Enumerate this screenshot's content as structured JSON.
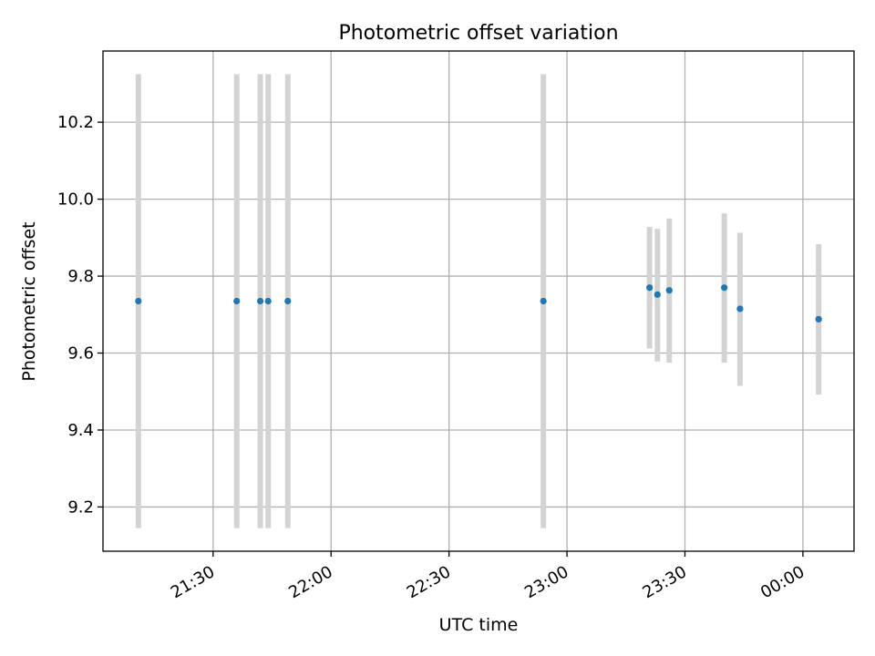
{
  "chart_data": {
    "type": "scatter",
    "title": "Photometric offset variation",
    "xlabel": "UTC time",
    "ylabel": "Photometric offset",
    "x_ticks": [
      "21:30",
      "22:00",
      "22:30",
      "23:00",
      "23:30",
      "00:00"
    ],
    "y_ticks": [
      "9.2",
      "9.4",
      "9.6",
      "9.8",
      "10.0",
      "10.2"
    ],
    "xlim": [
      "21:02",
      "00:13"
    ],
    "ylim": [
      9.085,
      10.385
    ],
    "grid": true,
    "legend": "none",
    "point_color": "#1f77b4",
    "errorbar_color": "#d3d3d3",
    "points": [
      {
        "x": "21:11",
        "y": 9.735,
        "lo": 9.145,
        "hi": 10.325
      },
      {
        "x": "21:36",
        "y": 9.735,
        "lo": 9.145,
        "hi": 10.325
      },
      {
        "x": "21:42",
        "y": 9.735,
        "lo": 9.145,
        "hi": 10.325
      },
      {
        "x": "21:44",
        "y": 9.735,
        "lo": 9.145,
        "hi": 10.325
      },
      {
        "x": "21:49",
        "y": 9.735,
        "lo": 9.145,
        "hi": 10.325
      },
      {
        "x": "22:54",
        "y": 9.735,
        "lo": 9.145,
        "hi": 10.325
      },
      {
        "x": "23:21",
        "y": 9.77,
        "lo": 9.612,
        "hi": 9.928
      },
      {
        "x": "23:23",
        "y": 9.752,
        "lo": 9.578,
        "hi": 9.923
      },
      {
        "x": "23:26",
        "y": 9.763,
        "lo": 9.575,
        "hi": 9.95
      },
      {
        "x": "23:40",
        "y": 9.77,
        "lo": 9.575,
        "hi": 9.963
      },
      {
        "x": "23:44",
        "y": 9.715,
        "lo": 9.515,
        "hi": 9.913
      },
      {
        "x": "00:04",
        "y": 9.688,
        "lo": 9.492,
        "hi": 9.883
      }
    ]
  }
}
